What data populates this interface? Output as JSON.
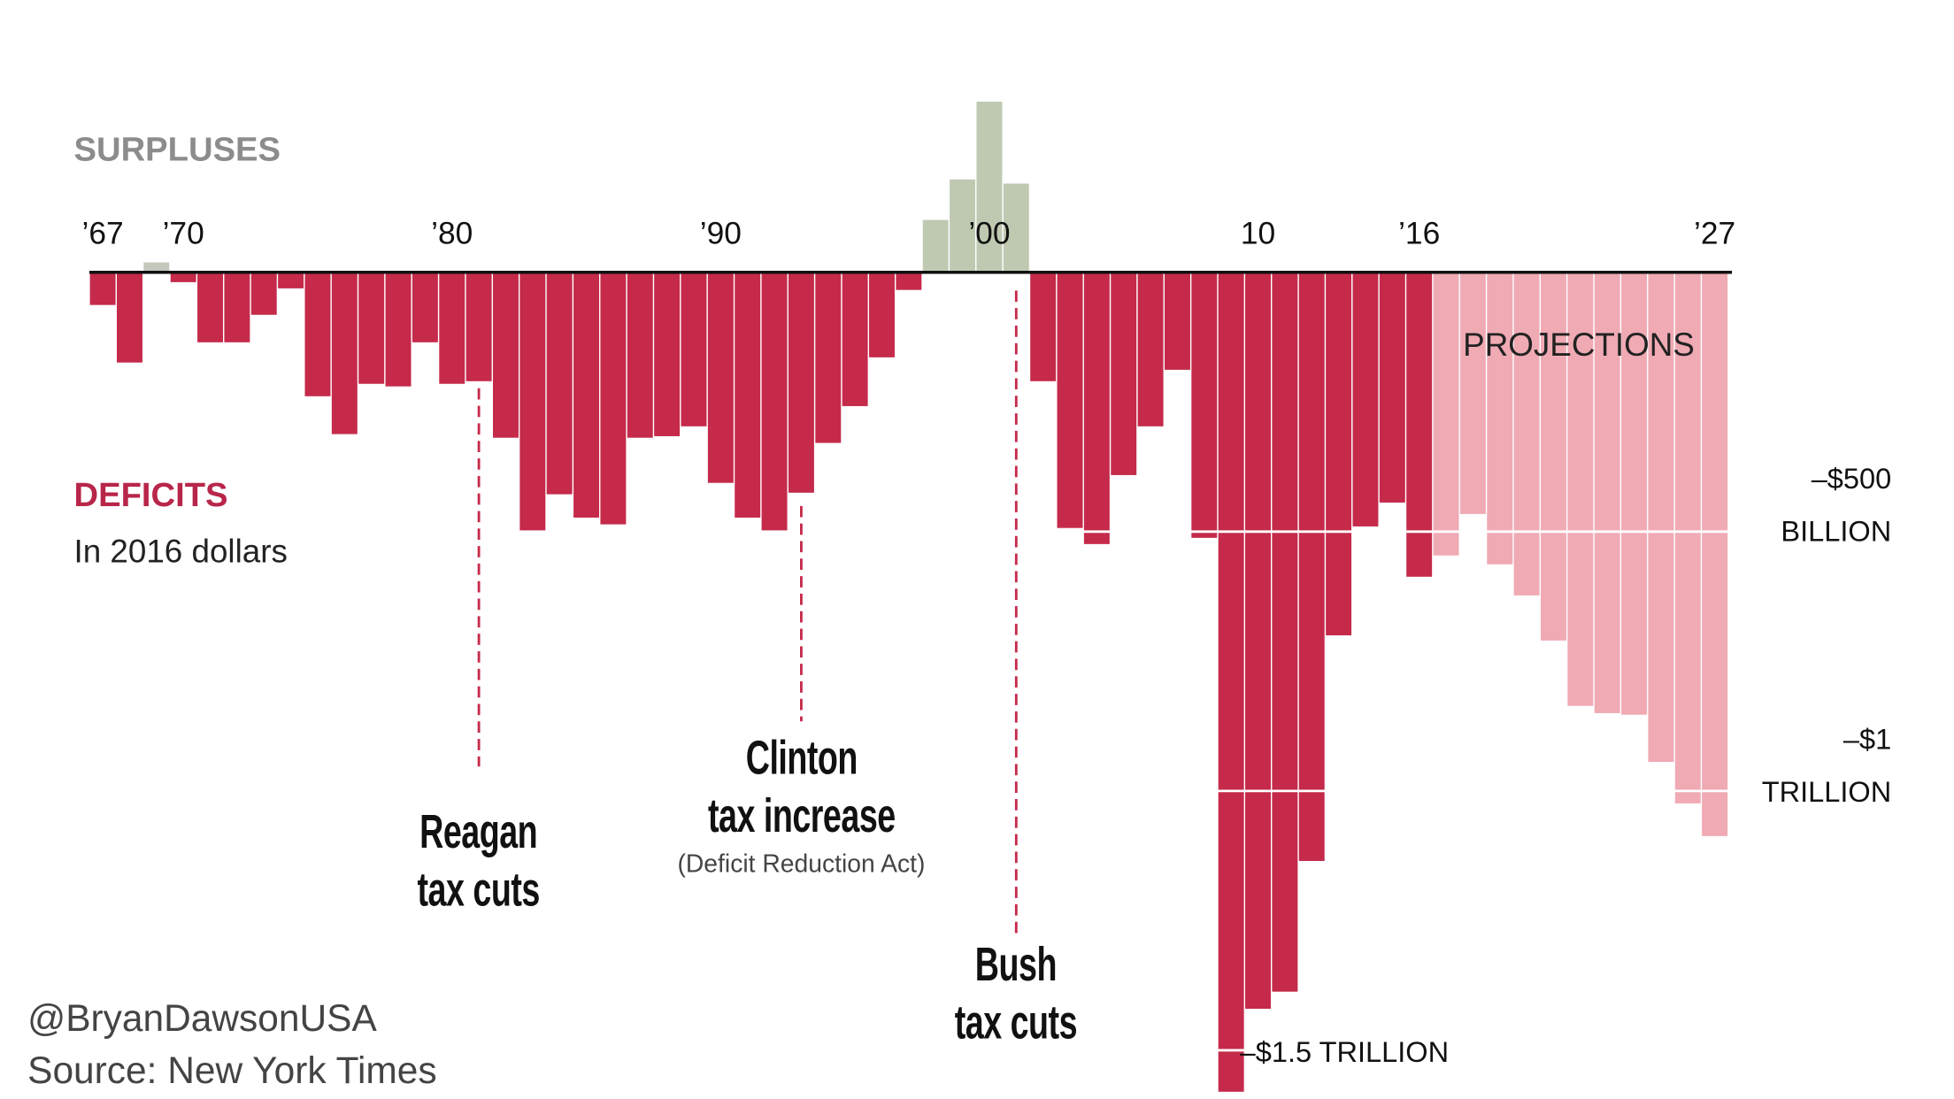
{
  "chart_data": {
    "type": "bar",
    "labels": {
      "surpluses": "SURPLUSES",
      "deficits": "DEFICITS",
      "units": "In 2016 dollars",
      "projections": "PROJECTIONS"
    },
    "x": [
      1967,
      1968,
      1969,
      1970,
      1971,
      1972,
      1973,
      1974,
      1975,
      1976,
      1977,
      1978,
      1979,
      1980,
      1981,
      1982,
      1983,
      1984,
      1985,
      1986,
      1987,
      1988,
      1989,
      1990,
      1991,
      1992,
      1993,
      1994,
      1995,
      1996,
      1997,
      1998,
      1999,
      2000,
      2001,
      2002,
      2003,
      2004,
      2005,
      2006,
      2007,
      2008,
      2009,
      2010,
      2011,
      2012,
      2013,
      2014,
      2015,
      2016,
      2017,
      2018,
      2019,
      2020,
      2021,
      2022,
      2023,
      2024,
      2025,
      2026,
      2027
    ],
    "values": [
      -63,
      -174,
      19,
      -19,
      -135,
      -135,
      -82,
      -31,
      -239,
      -312,
      -215,
      -220,
      -135,
      -215,
      -210,
      -319,
      -498,
      -428,
      -473,
      -486,
      -319,
      -316,
      -297,
      -406,
      -473,
      -498,
      -425,
      -329,
      -258,
      -164,
      -34,
      101,
      179,
      329,
      171,
      -210,
      -493,
      -524,
      -391,
      -297,
      -188,
      -512,
      -1580,
      -1420,
      -1387,
      -1135,
      -700,
      -490,
      -444,
      -587,
      -546,
      -466,
      -563,
      -623,
      -710,
      -836,
      -850,
      -853,
      -944,
      -1024,
      -1087
    ],
    "colors": [
      "#c52a4b",
      "#c52a4b",
      "#c3c8bc",
      "#c52a4b",
      "#c52a4b",
      "#c52a4b",
      "#c52a4b",
      "#c52a4b",
      "#c52a4b",
      "#c52a4b",
      "#c52a4b",
      "#c52a4b",
      "#c52a4b",
      "#c52a4b",
      "#c52a4b",
      "#c52a4b",
      "#c52a4b",
      "#c52a4b",
      "#c52a4b",
      "#c52a4b",
      "#c52a4b",
      "#c52a4b",
      "#c52a4b",
      "#c52a4b",
      "#c52a4b",
      "#c52a4b",
      "#c52a4b",
      "#c52a4b",
      "#c52a4b",
      "#c52a4b",
      "#c52a4b",
      "#bfc9b1",
      "#bfc9b1",
      "#bfc9b1",
      "#bfc9b1",
      "#c52a4b",
      "#c52a4b",
      "#c52a4b",
      "#c52a4b",
      "#c52a4b",
      "#c52a4b",
      "#c52a4b",
      "#c52a4b",
      "#c52a4b",
      "#c52a4b",
      "#c52a4b",
      "#c52a4b",
      "#c52a4b",
      "#c52a4b",
      "#c52a4b",
      "#f0aab4",
      "#f0aab4",
      "#f0aab4",
      "#f0aab4",
      "#f0aab4",
      "#f0aab4",
      "#f0aab4",
      "#f0aab4",
      "#f0aab4",
      "#f0aab4",
      "#f0aab4"
    ],
    "xlim": [
      1966.5,
      2027.5
    ],
    "xticks": [
      {
        "value": 1967,
        "label": "’67"
      },
      {
        "value": 1970,
        "label": "’70"
      },
      {
        "value": 1980,
        "label": "’80"
      },
      {
        "value": 1990,
        "label": "’90"
      },
      {
        "value": 2000,
        "label": "’00"
      },
      {
        "value": 2010,
        "label": "10"
      },
      {
        "value": 2016,
        "label": "’16"
      },
      {
        "value": 2027,
        "label": "’27"
      }
    ],
    "ylim": [
      -1600,
      525
    ],
    "yticks": [
      {
        "value": -500,
        "label": "–$500\nBILLION"
      },
      {
        "value": -1000,
        "label": "–$1\nTRILLION"
      },
      {
        "value": -1500,
        "label": "–$1.5 TRILLION"
      }
    ],
    "annotations": [
      {
        "text": "Reagan\ntax cuts",
        "x": 1981
      },
      {
        "text": "Clinton\ntax increase",
        "subtext": "(Deficit Reduction Act)",
        "x": 1993
      },
      {
        "text": "Bush\ntax cuts",
        "x": 2001
      }
    ],
    "credits": [
      "@BryanDawsonUSA",
      "Source: New York Times"
    ]
  }
}
